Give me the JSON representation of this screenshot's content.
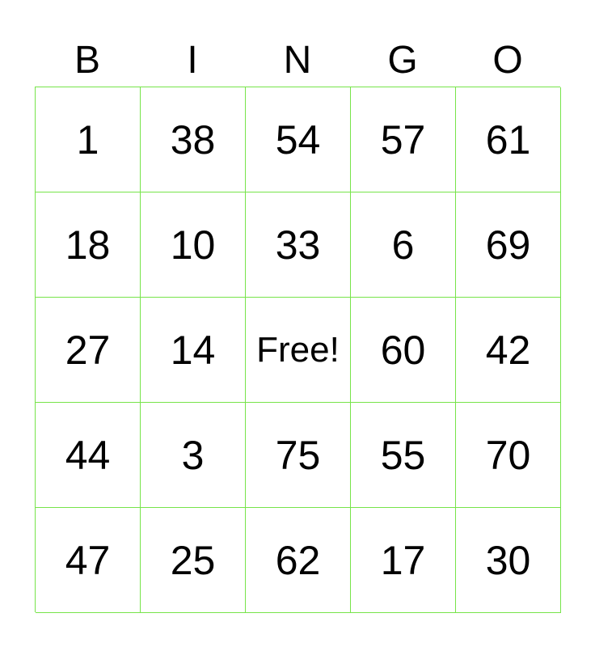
{
  "header": [
    "B",
    "I",
    "N",
    "G",
    "O"
  ],
  "border_color": "#77e44a",
  "rows": [
    [
      "1",
      "38",
      "54",
      "57",
      "61"
    ],
    [
      "18",
      "10",
      "33",
      "6",
      "69"
    ],
    [
      "27",
      "14",
      "Free!",
      "60",
      "42"
    ],
    [
      "44",
      "3",
      "75",
      "55",
      "70"
    ],
    [
      "47",
      "25",
      "62",
      "17",
      "30"
    ]
  ]
}
